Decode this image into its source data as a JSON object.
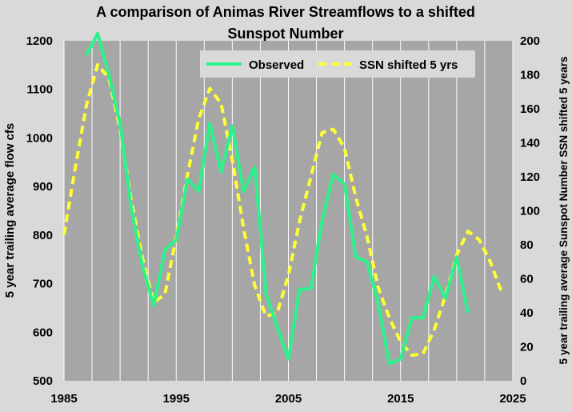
{
  "colors": {
    "background": "#d9d9d9",
    "plot_area": "#a6a6a6",
    "gridline": "#ffffff",
    "observed": "#2cf28c",
    "ssn": "#ffff33"
  },
  "chart_data": {
    "type": "line",
    "title_line1": "A comparison of Animas River Streamflows to a shifted",
    "title_line2": "Sunspot Number",
    "xlabel": "",
    "ylabel": "5 year trailing average flow cfs",
    "y2label": "5 year trailing average Sunspot Number SSN shifted 5 years",
    "xlim": [
      1985,
      2025
    ],
    "x_ticks": [
      1985,
      1995,
      2005,
      2015,
      2025
    ],
    "x_gridlines": [
      1985,
      1987.5,
      1990,
      1992.5,
      1995,
      1997.5,
      2000,
      2002.5,
      2005,
      2007.5,
      2010,
      2012.5,
      2015,
      2017.5,
      2020,
      2022.5,
      2025
    ],
    "ylim": [
      500,
      1200
    ],
    "y_ticks": [
      500,
      600,
      700,
      800,
      900,
      1000,
      1100,
      1200
    ],
    "y2lim": [
      0,
      200
    ],
    "y2_ticks": [
      0,
      20,
      40,
      60,
      80,
      100,
      120,
      140,
      160,
      180,
      200
    ],
    "grid": "vertical",
    "legend_position": "top-right",
    "series": [
      {
        "name": "Observed",
        "axis": "left",
        "color": "#2cf28c",
        "dash": "solid",
        "x": [
          1987,
          1988,
          1989,
          1990,
          1991,
          1992,
          1993,
          1994,
          1995,
          1996,
          1997,
          1998,
          1999,
          2000,
          2001,
          2002,
          2003,
          2004,
          2005,
          2006,
          2007,
          2008,
          2009,
          2010,
          2011,
          2012,
          2013,
          2014,
          2015,
          2016,
          2017,
          2018,
          2019,
          2020,
          2021
        ],
        "y": [
          1170,
          1215,
          1130,
          1030,
          855,
          735,
          655,
          770,
          790,
          915,
          890,
          1030,
          930,
          1025,
          890,
          940,
          680,
          610,
          545,
          688,
          690,
          830,
          925,
          905,
          755,
          745,
          660,
          535,
          545,
          630,
          630,
          715,
          670,
          755,
          640
        ]
      },
      {
        "name": "SSN shifted 5 yrs",
        "axis": "right",
        "color": "#ffff33",
        "dash": "dashed",
        "x": [
          1985,
          1986,
          1987,
          1988,
          1989,
          1990,
          1991,
          1992,
          1993,
          1994,
          1995,
          1996,
          1997,
          1998,
          1999,
          2000,
          2001,
          2002,
          2003,
          2004,
          2005,
          2006,
          2007,
          2008,
          2009,
          2010,
          2011,
          2012,
          2013,
          2014,
          2015,
          2016,
          2017,
          2018,
          2019,
          2020,
          2021,
          2022,
          2023,
          2024
        ],
        "y": [
          86,
          125,
          162,
          186,
          178,
          148,
          106,
          72,
          46,
          51,
          85,
          121,
          154,
          172,
          163,
          130,
          90,
          56,
          38,
          40,
          62,
          94,
          120,
          146,
          148,
          137,
          108,
          85,
          55,
          37,
          23,
          15,
          16,
          30,
          50,
          74,
          88,
          83,
          70,
          52
        ]
      }
    ]
  }
}
